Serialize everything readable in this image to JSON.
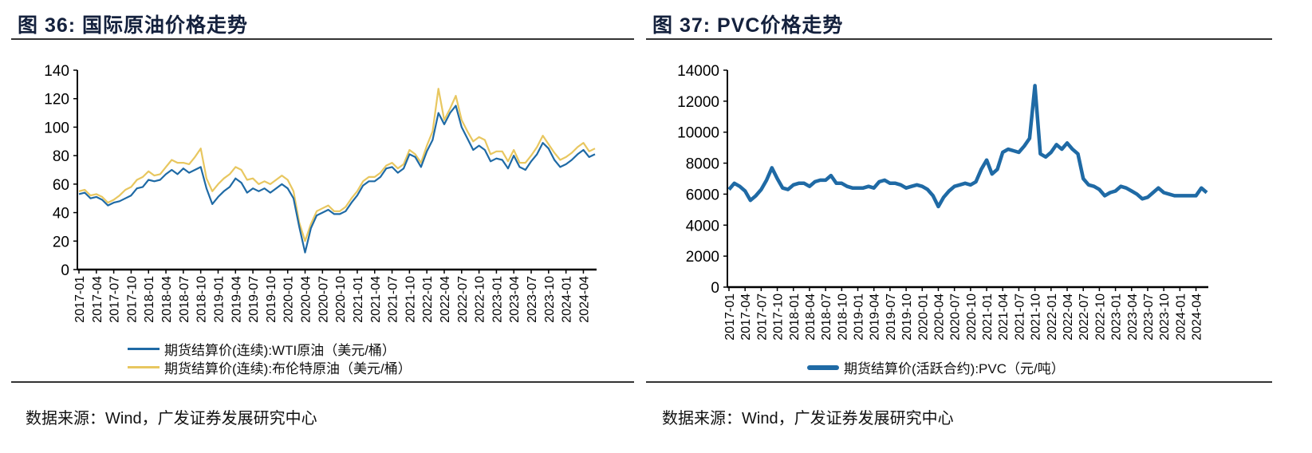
{
  "panels": {
    "left": {
      "title": "图 36:  国际原油价格走势",
      "source": "数据来源：Wind，广发证券发展研究中心"
    },
    "right": {
      "title": "图 37:  PVC价格走势",
      "source": "数据来源：Wind，广发证券发展研究中心"
    }
  },
  "chart_data": [
    {
      "type": "line",
      "title": "图 36: 国际原油价格走势",
      "ylim": [
        0,
        140
      ],
      "yticks": [
        0,
        20,
        40,
        60,
        80,
        100,
        120,
        140
      ],
      "grid": false,
      "legend_position": "bottom",
      "xtick_labels": [
        "2017-01",
        "2017-04",
        "2017-07",
        "2017-10",
        "2018-01",
        "2018-04",
        "2018-07",
        "2018-10",
        "2019-01",
        "2019-04",
        "2019-07",
        "2019-10",
        "2020-01",
        "2020-04",
        "2020-07",
        "2020-10",
        "2021-01",
        "2021-04",
        "2021-07",
        "2021-10",
        "2022-01",
        "2022-04",
        "2022-07",
        "2022-10",
        "2023-01",
        "2023-04",
        "2023-07",
        "2023-10",
        "2024-01",
        "2024-04"
      ],
      "x": [
        "2017-01",
        "2017-02",
        "2017-03",
        "2017-04",
        "2017-05",
        "2017-06",
        "2017-07",
        "2017-08",
        "2017-09",
        "2017-10",
        "2017-11",
        "2017-12",
        "2018-01",
        "2018-02",
        "2018-03",
        "2018-04",
        "2018-05",
        "2018-06",
        "2018-07",
        "2018-08",
        "2018-09",
        "2018-10",
        "2018-11",
        "2018-12",
        "2019-01",
        "2019-02",
        "2019-03",
        "2019-04",
        "2019-05",
        "2019-06",
        "2019-07",
        "2019-08",
        "2019-09",
        "2019-10",
        "2019-11",
        "2019-12",
        "2020-01",
        "2020-02",
        "2020-03",
        "2020-04",
        "2020-05",
        "2020-06",
        "2020-07",
        "2020-08",
        "2020-09",
        "2020-10",
        "2020-11",
        "2020-12",
        "2021-01",
        "2021-02",
        "2021-03",
        "2021-04",
        "2021-05",
        "2021-06",
        "2021-07",
        "2021-08",
        "2021-09",
        "2021-10",
        "2021-11",
        "2021-12",
        "2022-01",
        "2022-02",
        "2022-03",
        "2022-04",
        "2022-05",
        "2022-06",
        "2022-07",
        "2022-08",
        "2022-09",
        "2022-10",
        "2022-11",
        "2022-12",
        "2023-01",
        "2023-02",
        "2023-03",
        "2023-04",
        "2023-05",
        "2023-06",
        "2023-07",
        "2023-08",
        "2023-09",
        "2023-10",
        "2023-11",
        "2023-12",
        "2024-01",
        "2024-02",
        "2024-03",
        "2024-04",
        "2024-05",
        "2024-06"
      ],
      "series": [
        {
          "name": "期货结算价(连续):WTI原油（美元/桶）",
          "color": "#1f6aa5",
          "values": [
            53,
            54,
            50,
            51,
            49,
            45,
            47,
            48,
            50,
            52,
            57,
            58,
            63,
            62,
            63,
            67,
            70,
            67,
            71,
            68,
            70,
            72,
            57,
            46,
            51,
            55,
            58,
            64,
            61,
            54,
            57,
            55,
            57,
            54,
            57,
            60,
            57,
            50,
            30,
            12,
            29,
            38,
            40,
            42,
            39,
            39,
            41,
            47,
            52,
            59,
            62,
            62,
            65,
            71,
            72,
            68,
            71,
            81,
            79,
            72,
            83,
            91,
            110,
            102,
            110,
            115,
            100,
            92,
            84,
            87,
            84,
            76,
            78,
            77,
            71,
            80,
            72,
            70,
            76,
            81,
            89,
            85,
            77,
            72,
            74,
            77,
            81,
            84,
            79,
            81
          ]
        },
        {
          "name": "期货结算价(连续):布伦特原油（美元/桶）",
          "color": "#e8c760",
          "values": [
            55,
            56,
            52,
            53,
            51,
            47,
            49,
            52,
            56,
            58,
            63,
            65,
            69,
            66,
            67,
            72,
            77,
            75,
            75,
            74,
            79,
            85,
            64,
            55,
            60,
            64,
            67,
            72,
            70,
            63,
            64,
            60,
            62,
            60,
            63,
            66,
            63,
            55,
            33,
            20,
            32,
            41,
            43,
            45,
            41,
            41,
            44,
            50,
            55,
            62,
            65,
            65,
            68,
            73,
            75,
            71,
            74,
            84,
            81,
            75,
            87,
            97,
            127,
            105,
            113,
            122,
            105,
            97,
            90,
            93,
            91,
            81,
            83,
            83,
            76,
            84,
            75,
            75,
            80,
            86,
            94,
            88,
            82,
            77,
            79,
            82,
            86,
            89,
            83,
            85
          ]
        }
      ]
    },
    {
      "type": "line",
      "title": "图 37: PVC价格走势",
      "ylim": [
        0,
        14000
      ],
      "yticks": [
        0,
        2000,
        4000,
        6000,
        8000,
        10000,
        12000,
        14000
      ],
      "grid": false,
      "legend_position": "bottom",
      "xtick_labels": [
        "2017-01",
        "2017-04",
        "2017-07",
        "2017-10",
        "2018-01",
        "2018-04",
        "2018-07",
        "2018-10",
        "2019-01",
        "2019-04",
        "2019-07",
        "2019-10",
        "2020-01",
        "2020-04",
        "2020-07",
        "2020-10",
        "2021-01",
        "2021-04",
        "2021-07",
        "2021-10",
        "2022-01",
        "2022-04",
        "2022-07",
        "2022-10",
        "2023-01",
        "2023-04",
        "2023-07",
        "2023-10",
        "2024-01",
        "2024-04"
      ],
      "x": [
        "2017-01",
        "2017-02",
        "2017-03",
        "2017-04",
        "2017-05",
        "2017-06",
        "2017-07",
        "2017-08",
        "2017-09",
        "2017-10",
        "2017-11",
        "2017-12",
        "2018-01",
        "2018-02",
        "2018-03",
        "2018-04",
        "2018-05",
        "2018-06",
        "2018-07",
        "2018-08",
        "2018-09",
        "2018-10",
        "2018-11",
        "2018-12",
        "2019-01",
        "2019-02",
        "2019-03",
        "2019-04",
        "2019-05",
        "2019-06",
        "2019-07",
        "2019-08",
        "2019-09",
        "2019-10",
        "2019-11",
        "2019-12",
        "2020-01",
        "2020-02",
        "2020-03",
        "2020-04",
        "2020-05",
        "2020-06",
        "2020-07",
        "2020-08",
        "2020-09",
        "2020-10",
        "2020-11",
        "2020-12",
        "2021-01",
        "2021-02",
        "2021-03",
        "2021-04",
        "2021-05",
        "2021-06",
        "2021-07",
        "2021-08",
        "2021-09",
        "2021-10",
        "2021-11",
        "2021-12",
        "2022-01",
        "2022-02",
        "2022-03",
        "2022-04",
        "2022-05",
        "2022-06",
        "2022-07",
        "2022-08",
        "2022-09",
        "2022-10",
        "2022-11",
        "2022-12",
        "2023-01",
        "2023-02",
        "2023-03",
        "2023-04",
        "2023-05",
        "2023-06",
        "2023-07",
        "2023-08",
        "2023-09",
        "2023-10",
        "2023-11",
        "2023-12",
        "2024-01",
        "2024-02",
        "2024-03",
        "2024-04",
        "2024-05",
        "2024-06"
      ],
      "series": [
        {
          "name": "期货结算价(活跃合约):PVC（元/吨）",
          "color": "#1f6aa5",
          "values": [
            6300,
            6700,
            6500,
            6200,
            5600,
            5900,
            6300,
            6900,
            7700,
            7000,
            6400,
            6300,
            6600,
            6700,
            6700,
            6500,
            6800,
            6900,
            6900,
            7200,
            6700,
            6700,
            6500,
            6400,
            6400,
            6400,
            6500,
            6400,
            6800,
            6900,
            6700,
            6700,
            6600,
            6400,
            6500,
            6600,
            6500,
            6300,
            5900,
            5200,
            5800,
            6200,
            6500,
            6600,
            6700,
            6600,
            6800,
            7600,
            8200,
            7300,
            7600,
            8700,
            8900,
            8800,
            8700,
            9100,
            9600,
            13000,
            8600,
            8400,
            8700,
            9200,
            8900,
            9300,
            8900,
            8600,
            7000,
            6600,
            6500,
            6300,
            5900,
            6100,
            6200,
            6500,
            6400,
            6200,
            6000,
            5700,
            5800,
            6100,
            6400,
            6100,
            6000,
            5900,
            5900,
            5900,
            5900,
            5900,
            6400,
            6100
          ]
        }
      ]
    }
  ]
}
